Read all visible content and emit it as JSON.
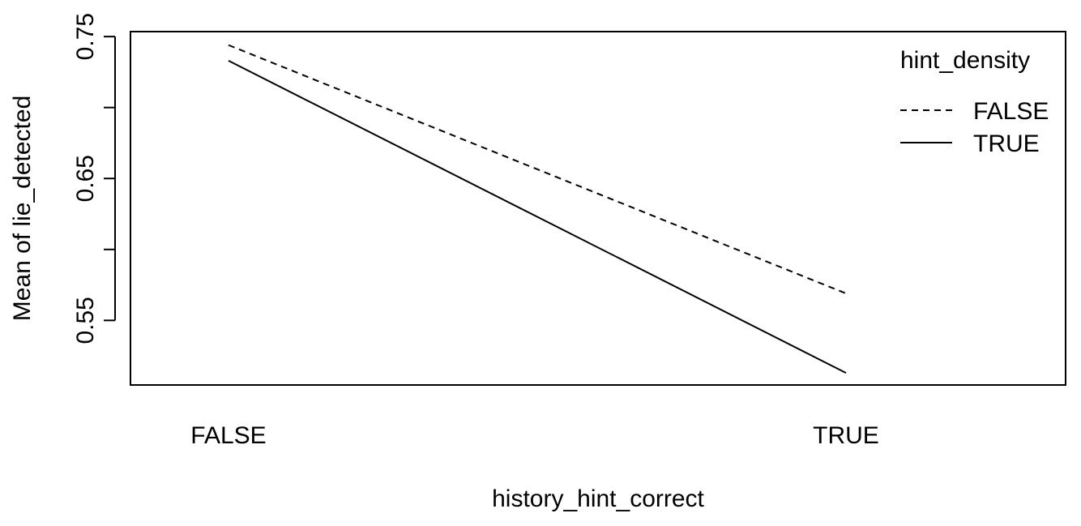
{
  "chart_data": {
    "type": "line",
    "title": "",
    "xlabel": "history_hint_correct",
    "ylabel": "Mean of lie_detected",
    "categories": [
      "FALSE",
      "TRUE"
    ],
    "yticks": [
      "0.55",
      "0.65",
      "0.75"
    ],
    "yminor": [
      0.6,
      0.7
    ],
    "ylim": [
      0.5045,
      0.7535
    ],
    "legend": {
      "title": "hint_density",
      "position": "top-right"
    },
    "series": [
      {
        "name": "FALSE",
        "linestyle": "dashed",
        "values": [
          0.744,
          0.569
        ]
      },
      {
        "name": "TRUE",
        "linestyle": "solid",
        "values": [
          0.733,
          0.513
        ]
      }
    ],
    "grid": false,
    "colors": {
      "line": "#000000",
      "background": "#ffffff"
    }
  }
}
